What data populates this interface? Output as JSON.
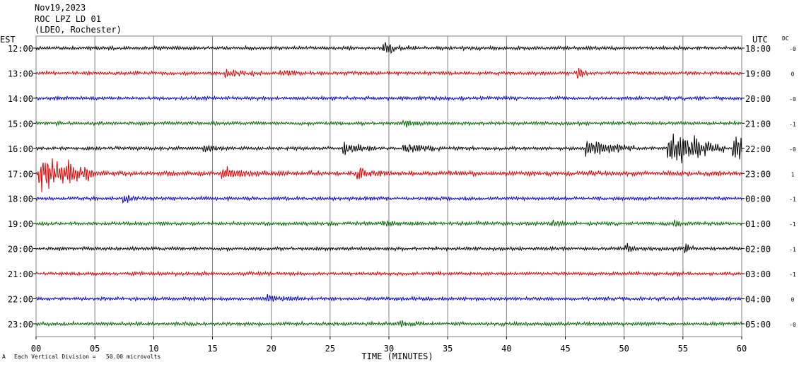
{
  "header": {
    "date": "Nov19,2023",
    "station": "ROC LPZ LD 01",
    "network": "(LDEO, Rochester)"
  },
  "left_axis_title": "EST",
  "right_axis_title": "UTC",
  "dc_title": "DC",
  "footer": {
    "symbol": "A",
    "scale_note": "Each Vertical Division =   50.00 microvolts"
  },
  "colors": {
    "black": "#000000",
    "red": "#e00000",
    "blue": "#0000cc",
    "green": "#006400",
    "grid": "#808080"
  },
  "chart_data": {
    "type": "line",
    "title": "Nov19,2023",
    "xlabel": "TIME (MINUTES)",
    "ylabel": "EST",
    "xlim": [
      0,
      60
    ],
    "x_ticks": [
      "00",
      "05",
      "10",
      "15",
      "20",
      "25",
      "30",
      "35",
      "40",
      "45",
      "50",
      "55",
      "60"
    ],
    "series": [
      {
        "est": "12:00",
        "utc": "18:00",
        "dc": "-0",
        "color": "black",
        "amp": 3,
        "events": [
          [
            29.7,
            9,
            1.2
          ]
        ]
      },
      {
        "est": "13:00",
        "utc": "19:00",
        "dc": "0",
        "color": "red",
        "amp": 3,
        "events": [
          [
            16.3,
            5,
            1.5
          ],
          [
            21,
            5,
            0.8
          ],
          [
            46.2,
            7,
            0.4
          ]
        ]
      },
      {
        "est": "14:00",
        "utc": "20:00",
        "dc": "-0",
        "color": "blue",
        "amp": 3,
        "events": []
      },
      {
        "est": "15:00",
        "utc": "21:00",
        "dc": "-1",
        "color": "green",
        "amp": 3,
        "events": [
          [
            31.5,
            4,
            0.6
          ]
        ]
      },
      {
        "est": "16:00",
        "utc": "22:00",
        "dc": "-0",
        "color": "black",
        "amp": 3,
        "events": [
          [
            14.5,
            6,
            0.6
          ],
          [
            26.3,
            12,
            1.2
          ],
          [
            31.5,
            6,
            1.5
          ],
          [
            47,
            12,
            2.5
          ],
          [
            54,
            26,
            3
          ],
          [
            59.5,
            22,
            1
          ]
        ]
      },
      {
        "est": "17:00",
        "utc": "23:00",
        "dc": "1",
        "color": "red",
        "amp": 4,
        "events": [
          [
            0.5,
            30,
            3
          ],
          [
            16,
            8,
            1.5
          ],
          [
            27.5,
            9,
            0.8
          ]
        ]
      },
      {
        "est": "18:00",
        "utc": "00:00",
        "dc": "-1",
        "color": "blue",
        "amp": 3,
        "events": [
          [
            7.5,
            5,
            0.8
          ]
        ]
      },
      {
        "est": "19:00",
        "utc": "01:00",
        "dc": "-1",
        "color": "green",
        "amp": 3,
        "events": [
          [
            29.5,
            5,
            0.6
          ],
          [
            44,
            6,
            0.4
          ],
          [
            54.5,
            5,
            0.5
          ]
        ]
      },
      {
        "est": "20:00",
        "utc": "02:00",
        "dc": "-1",
        "color": "black",
        "amp": 3,
        "events": [
          [
            50.3,
            6,
            0.3
          ],
          [
            55.4,
            6,
            0.3
          ]
        ]
      },
      {
        "est": "21:00",
        "utc": "03:00",
        "dc": "-1",
        "color": "red",
        "amp": 3,
        "events": []
      },
      {
        "est": "22:00",
        "utc": "04:00",
        "dc": "0",
        "color": "blue",
        "amp": 3,
        "events": [
          [
            19.8,
            5,
            1
          ]
        ]
      },
      {
        "est": "23:00",
        "utc": "05:00",
        "dc": "-0",
        "color": "green",
        "amp": 3,
        "events": [
          [
            31,
            5,
            0.8
          ]
        ]
      }
    ]
  }
}
